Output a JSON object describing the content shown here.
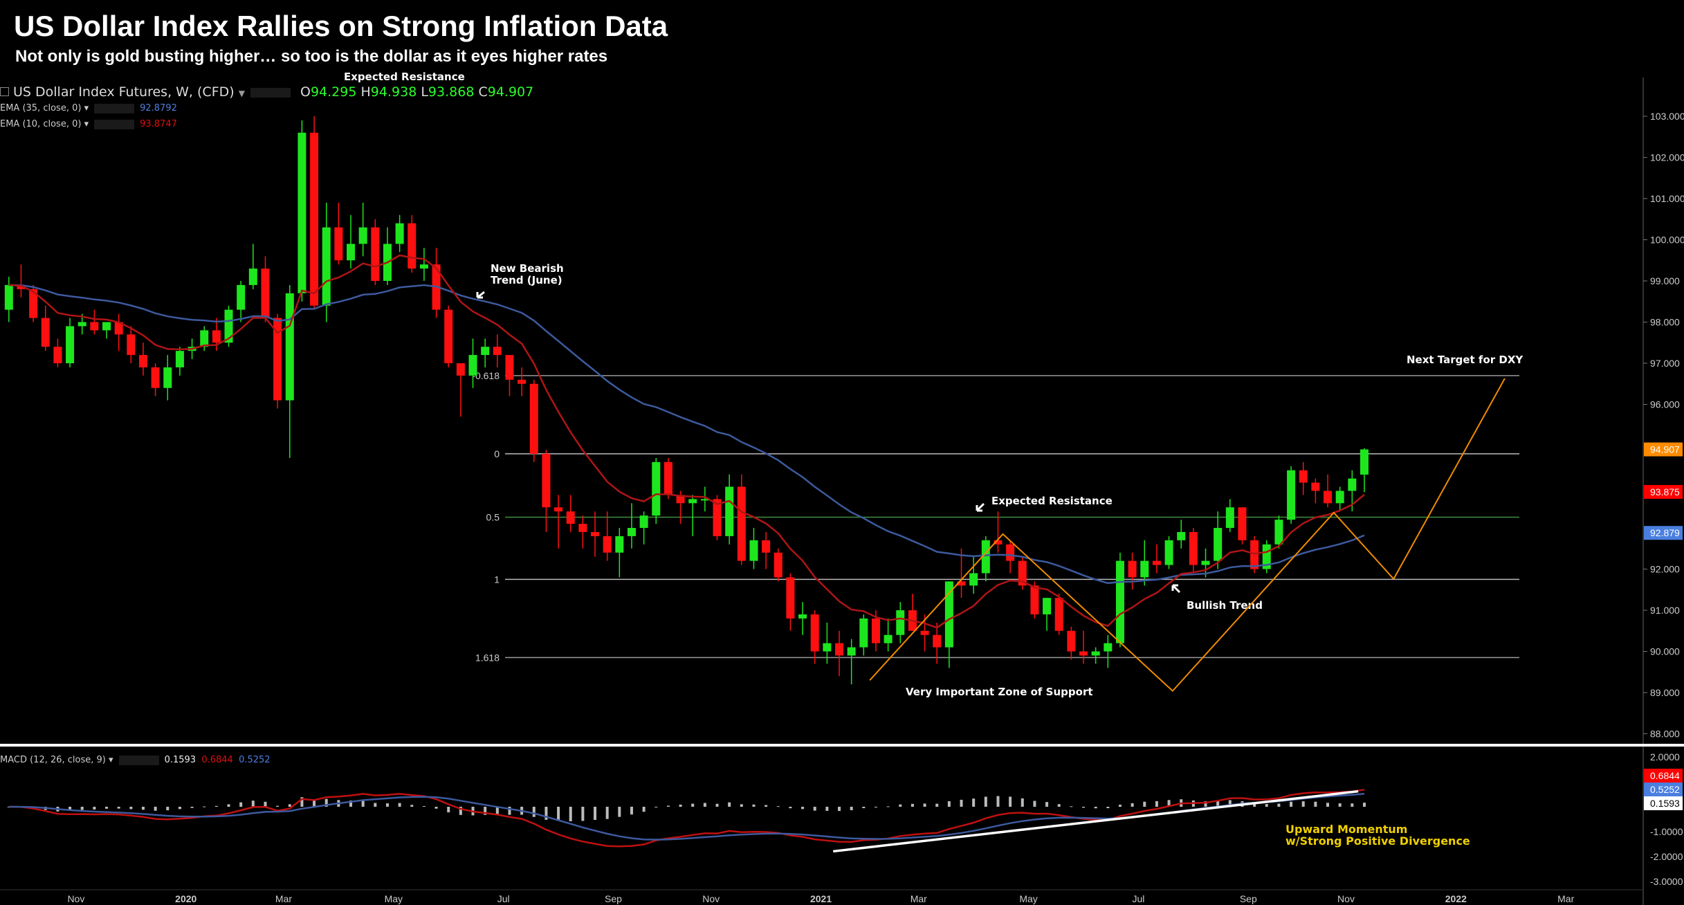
{
  "header": {
    "title": "US Dollar Index Rallies on Strong Inflation Data",
    "subtitle": "Not only is gold busting higher… so too is the dollar as it eyes higher rates"
  },
  "legend": {
    "symbol": "US Dollar Index Futures, W, (CFD)",
    "o_label": "O",
    "o": "94.295",
    "h_label": "H",
    "h": "94.938",
    "l_label": "L",
    "l": "93.868",
    "c_label": "C",
    "c": "94.907",
    "ema35_label": "EMA (35, close, 0)",
    "ema35_value": "92.8792",
    "ema10_label": "EMA (10, close, 0)",
    "ema10_value": "93.8747",
    "macd_label": "MACD (12, 26, close, 9)",
    "macd_hist": "0.1593",
    "macd_line": "0.6844",
    "macd_signal": "0.5252"
  },
  "chart_data": {
    "type": "candlestick",
    "title": "US Dollar Index Futures, W",
    "price_axis": {
      "range": [
        88,
        103
      ],
      "ticks": [
        "88.000",
        "89.000",
        "90.000",
        "91.000",
        "92.000",
        "93.000",
        "94.000",
        "95.000",
        "96.000",
        "97.000",
        "98.000",
        "99.000",
        "100.000",
        "101.000",
        "102.000",
        "103.000"
      ]
    },
    "price_badges": [
      {
        "value": "94.907",
        "price": 94.907,
        "color": "#ff8c00"
      },
      {
        "value": "93.875",
        "price": 93.875,
        "color": "#ff0000"
      },
      {
        "value": "92.879",
        "price": 92.879,
        "color": "#4a7fe0"
      }
    ],
    "macd_axis": {
      "range": [
        -3,
        2
      ],
      "ticks": [
        {
          "v": 2,
          "t": "2.0000"
        },
        {
          "v": -1,
          "t": "-1.0000"
        },
        {
          "v": -2,
          "t": "-2.0000"
        },
        {
          "v": -3,
          "t": "-3.0000"
        }
      ]
    },
    "macd_badges": [
      {
        "value": "0.6844",
        "v": 0.6844,
        "color": "#ff0000",
        "text": "#fff"
      },
      {
        "value": "0.5252",
        "v": 0.5252,
        "color": "#4a7fe0",
        "text": "#fff"
      },
      {
        "value": "0.1593",
        "v": 0.1593,
        "color": "#ffffff",
        "text": "#000"
      }
    ],
    "time_labels": [
      {
        "t": "Nov",
        "w": 6,
        "bold": false
      },
      {
        "t": "2020",
        "w": 15,
        "bold": true
      },
      {
        "t": "Mar",
        "w": 23,
        "bold": false
      },
      {
        "t": "May",
        "w": 32,
        "bold": false
      },
      {
        "t": "Jul",
        "w": 41,
        "bold": false
      },
      {
        "t": "Sep",
        "w": 50,
        "bold": false
      },
      {
        "t": "Nov",
        "w": 58,
        "bold": false
      },
      {
        "t": "2021",
        "w": 67,
        "bold": true
      },
      {
        "t": "Mar",
        "w": 75,
        "bold": false
      },
      {
        "t": "May",
        "w": 84,
        "bold": false
      },
      {
        "t": "Jul",
        "w": 93,
        "bold": false
      },
      {
        "t": "Sep",
        "w": 102,
        "bold": false
      },
      {
        "t": "Nov",
        "w": 110,
        "bold": false
      },
      {
        "t": "2022",
        "w": 119,
        "bold": true
      },
      {
        "t": "Mar",
        "w": 128,
        "bold": false
      }
    ],
    "fib_levels": [
      {
        "label": "-0.618",
        "price": 96.7,
        "color": "#9a9a9a"
      },
      {
        "label": "0",
        "price": 94.8,
        "color": "#bbbbbb"
      },
      {
        "label": "0.5",
        "price": 93.26,
        "color": "#3f8f3f"
      },
      {
        "label": "1",
        "price": 91.75,
        "color": "#bbbbbb"
      },
      {
        "label": "1.618",
        "price": 89.85,
        "color": "#9a9a9a"
      }
    ],
    "candles": [
      [
        98.3,
        99.1,
        98.0,
        98.9
      ],
      [
        98.9,
        99.4,
        98.6,
        98.8
      ],
      [
        98.8,
        98.9,
        98.0,
        98.1
      ],
      [
        98.1,
        98.4,
        97.3,
        97.4
      ],
      [
        97.4,
        97.6,
        96.9,
        97.0
      ],
      [
        97.0,
        98.1,
        96.9,
        97.9
      ],
      [
        97.9,
        98.2,
        97.7,
        98.0
      ],
      [
        98.0,
        98.3,
        97.7,
        97.8
      ],
      [
        97.8,
        98.0,
        97.6,
        98.0
      ],
      [
        98.0,
        98.2,
        97.3,
        97.7
      ],
      [
        97.7,
        97.9,
        97.0,
        97.2
      ],
      [
        97.2,
        97.5,
        96.7,
        96.9
      ],
      [
        96.9,
        97.0,
        96.2,
        96.4
      ],
      [
        96.4,
        97.2,
        96.1,
        96.9
      ],
      [
        96.9,
        97.4,
        96.7,
        97.3
      ],
      [
        97.3,
        97.6,
        97.1,
        97.4
      ],
      [
        97.4,
        97.9,
        97.3,
        97.8
      ],
      [
        97.8,
        98.1,
        97.3,
        97.5
      ],
      [
        97.5,
        98.4,
        97.4,
        98.3
      ],
      [
        98.3,
        99.0,
        98.0,
        98.9
      ],
      [
        98.9,
        99.9,
        98.8,
        99.3
      ],
      [
        99.3,
        99.6,
        98.0,
        98.1
      ],
      [
        98.1,
        98.2,
        95.9,
        96.1
      ],
      [
        96.1,
        98.9,
        94.7,
        98.7
      ],
      [
        98.7,
        102.9,
        98.5,
        102.6
      ],
      [
        102.6,
        103.0,
        98.3,
        98.4
      ],
      [
        98.4,
        100.9,
        98.0,
        100.3
      ],
      [
        100.3,
        100.9,
        99.4,
        99.5
      ],
      [
        99.5,
        100.6,
        99.3,
        99.9
      ],
      [
        99.9,
        100.9,
        99.6,
        100.3
      ],
      [
        100.3,
        100.5,
        98.9,
        99.0
      ],
      [
        99.0,
        100.3,
        98.9,
        99.9
      ],
      [
        99.9,
        100.6,
        99.7,
        100.4
      ],
      [
        100.4,
        100.6,
        99.2,
        99.3
      ],
      [
        99.3,
        99.8,
        99.0,
        99.4
      ],
      [
        99.4,
        99.8,
        98.1,
        98.3
      ],
      [
        98.3,
        98.4,
        96.9,
        97.0
      ],
      [
        97.0,
        97.0,
        95.7,
        96.7
      ],
      [
        96.7,
        97.6,
        96.4,
        97.2
      ],
      [
        97.2,
        97.6,
        96.9,
        97.4
      ],
      [
        97.4,
        97.7,
        96.9,
        97.2
      ],
      [
        97.2,
        97.2,
        96.2,
        96.6
      ],
      [
        96.6,
        96.9,
        96.2,
        96.5
      ],
      [
        96.5,
        96.6,
        94.6,
        94.8
      ],
      [
        94.8,
        94.9,
        92.9,
        93.5
      ],
      [
        93.5,
        93.8,
        92.5,
        93.4
      ],
      [
        93.4,
        93.8,
        92.9,
        93.1
      ],
      [
        93.1,
        93.3,
        92.5,
        92.9
      ],
      [
        92.9,
        93.4,
        92.3,
        92.8
      ],
      [
        92.8,
        93.4,
        92.2,
        92.4
      ],
      [
        92.4,
        93.0,
        91.8,
        92.8
      ],
      [
        92.8,
        93.6,
        92.5,
        93.0
      ],
      [
        93.0,
        93.4,
        92.6,
        93.3
      ],
      [
        93.3,
        94.7,
        93.1,
        94.6
      ],
      [
        94.6,
        94.7,
        93.7,
        93.8
      ],
      [
        93.8,
        93.9,
        93.1,
        93.6
      ],
      [
        93.6,
        93.8,
        92.8,
        93.7
      ],
      [
        93.7,
        94.0,
        93.4,
        93.7
      ],
      [
        93.7,
        93.8,
        92.7,
        92.8
      ],
      [
        92.8,
        94.3,
        92.6,
        94.0
      ],
      [
        94.0,
        94.3,
        92.1,
        92.2
      ],
      [
        92.2,
        93.0,
        92.0,
        92.7
      ],
      [
        92.7,
        92.9,
        92.0,
        92.4
      ],
      [
        92.4,
        92.5,
        91.7,
        91.8
      ],
      [
        91.8,
        91.9,
        90.5,
        90.8
      ],
      [
        90.8,
        91.2,
        90.4,
        90.9
      ],
      [
        90.9,
        91.0,
        89.7,
        90.0
      ],
      [
        90.0,
        90.7,
        89.7,
        90.2
      ],
      [
        90.2,
        90.5,
        89.4,
        89.9
      ],
      [
        89.9,
        90.3,
        89.2,
        90.1
      ],
      [
        90.1,
        90.9,
        89.9,
        90.8
      ],
      [
        90.8,
        91.0,
        90.0,
        90.2
      ],
      [
        90.2,
        90.8,
        90.0,
        90.4
      ],
      [
        90.4,
        91.2,
        90.2,
        91.0
      ],
      [
        91.0,
        91.4,
        90.5,
        90.5
      ],
      [
        90.5,
        90.9,
        90.0,
        90.4
      ],
      [
        90.4,
        90.7,
        89.7,
        90.1
      ],
      [
        90.1,
        91.7,
        89.6,
        91.7
      ],
      [
        91.7,
        92.5,
        91.3,
        91.6
      ],
      [
        91.6,
        92.3,
        91.4,
        91.9
      ],
      [
        91.9,
        92.8,
        91.7,
        92.7
      ],
      [
        92.7,
        93.4,
        92.4,
        92.6
      ],
      [
        92.6,
        92.7,
        91.9,
        92.2
      ],
      [
        92.2,
        92.3,
        91.5,
        91.6
      ],
      [
        91.6,
        91.7,
        90.8,
        90.9
      ],
      [
        90.9,
        91.3,
        90.5,
        91.3
      ],
      [
        91.3,
        91.4,
        90.4,
        90.5
      ],
      [
        90.5,
        90.6,
        89.8,
        90.0
      ],
      [
        90.0,
        90.5,
        89.7,
        89.9
      ],
      [
        89.9,
        90.1,
        89.7,
        90.0
      ],
      [
        90.0,
        90.4,
        89.6,
        90.2
      ],
      [
        90.2,
        92.4,
        90.1,
        92.2
      ],
      [
        92.2,
        92.4,
        91.5,
        91.8
      ],
      [
        91.8,
        92.7,
        91.6,
        92.2
      ],
      [
        92.2,
        92.6,
        91.9,
        92.1
      ],
      [
        92.1,
        92.8,
        92.0,
        92.7
      ],
      [
        92.7,
        93.2,
        92.5,
        92.9
      ],
      [
        92.9,
        93.0,
        91.9,
        92.1
      ],
      [
        92.1,
        92.5,
        91.8,
        92.2
      ],
      [
        92.2,
        93.4,
        92.0,
        93.0
      ],
      [
        93.0,
        93.7,
        92.9,
        93.5
      ],
      [
        93.5,
        93.5,
        92.6,
        92.7
      ],
      [
        92.7,
        92.8,
        91.9,
        92.0
      ],
      [
        92.0,
        92.7,
        91.9,
        92.6
      ],
      [
        92.6,
        93.3,
        92.5,
        93.2
      ],
      [
        93.2,
        94.5,
        93.1,
        94.4
      ],
      [
        94.4,
        94.6,
        93.8,
        94.1
      ],
      [
        94.1,
        94.2,
        93.6,
        93.9
      ],
      [
        93.9,
        94.3,
        93.5,
        93.6
      ],
      [
        93.6,
        94.0,
        93.4,
        93.9
      ],
      [
        93.9,
        94.4,
        93.4,
        94.2
      ],
      [
        94.295,
        94.938,
        93.868,
        94.907
      ]
    ],
    "ema_periods": [
      35,
      10
    ],
    "ema_colors": [
      "#3d5a9e",
      "#b01515"
    ],
    "macd_params": [
      12,
      26,
      9
    ],
    "projection_path": [
      [
        71.0,
        89.3
      ],
      [
        81.9,
        92.85
      ],
      [
        95.8,
        89.04
      ],
      [
        109.0,
        93.37
      ],
      [
        113.9,
        91.76
      ],
      [
        123.0,
        96.63
      ]
    ],
    "projection_color": "#f08c00",
    "macd_trendline": [
      [
        68,
        -1.79
      ],
      [
        111,
        0.62
      ]
    ],
    "annotations": {
      "new_bearish_1": "New Bearish",
      "new_bearish_2": "Trend (June)",
      "expected_resistance": "Expected Resistance",
      "bullish_trend": "Bullish Trend",
      "support_zone": "Very Important Zone of Support",
      "next_target": "Next Target for DXY",
      "momentum_1": "Upward Momentum",
      "momentum_2": "w/Strong Positive Divergence"
    }
  }
}
